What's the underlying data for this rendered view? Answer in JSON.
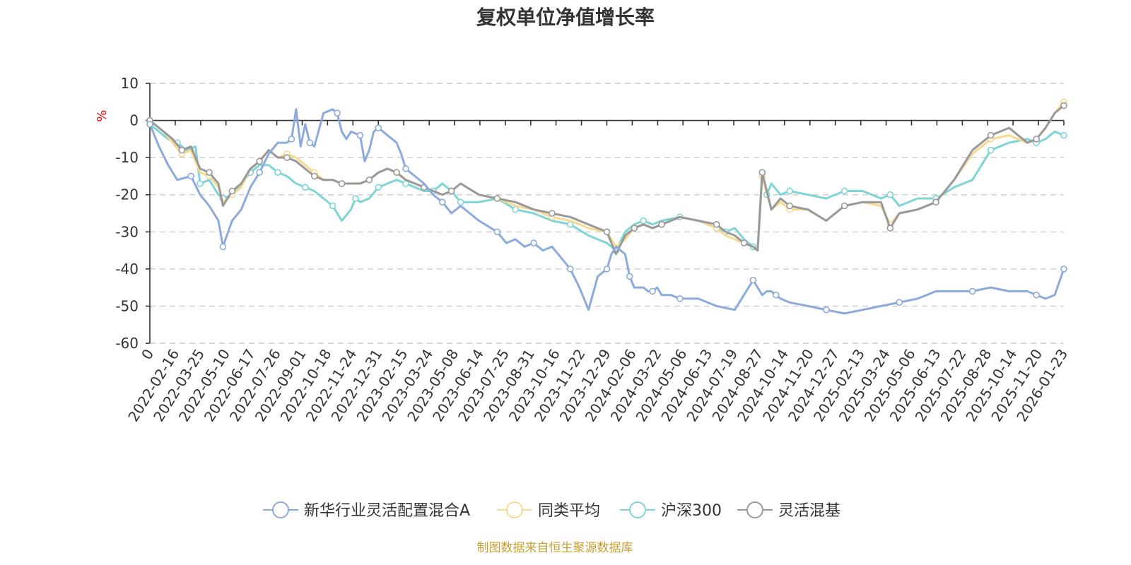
{
  "chart_data": {
    "type": "line",
    "title": "复权单位净值增长率",
    "ylabel": "%",
    "ylim": [
      -60,
      10
    ],
    "yticks": [
      "10",
      "0",
      "-10",
      "-20",
      "-30",
      "-40",
      "-50",
      "-60"
    ],
    "xticks": [
      "0",
      "2022-02-16",
      "2022-03-25",
      "2022-05-10",
      "2022-06-17",
      "2022-07-26",
      "2022-09-01",
      "2022-10-18",
      "2022-11-24",
      "2022-12-31",
      "2023-02-15",
      "2023-03-24",
      "2023-05-08",
      "2023-06-14",
      "2023-07-25",
      "2023-08-31",
      "2023-10-16",
      "2023-11-22",
      "2023-12-29",
      "2024-02-06",
      "2024-03-22",
      "2024-05-06",
      "2024-06-13",
      "2024-07-19",
      "2024-08-27",
      "2024-10-14",
      "2024-11-20",
      "2024-12-27",
      "2025-02-13",
      "2025-03-24",
      "2025-05-06",
      "2025-06-13",
      "2025-07-22",
      "2025-08-28",
      "2025-10-14",
      "2025-11-20",
      "2026-01-23"
    ],
    "x_positions": [
      0.0,
      0.0278,
      0.0556,
      0.0833,
      0.1111,
      0.1389,
      0.1667,
      0.1944,
      0.2222,
      0.25,
      0.2778,
      0.3056,
      0.3333,
      0.3611,
      0.3889,
      0.4167,
      0.4444,
      0.4722,
      0.5,
      0.5278,
      0.5556,
      0.5833,
      0.6111,
      0.6389,
      0.6667,
      0.6944,
      0.7222,
      0.75,
      0.7778,
      0.8056,
      0.8333,
      0.8611,
      0.8889,
      0.9167,
      0.9444,
      0.9722,
      1.0
    ],
    "legend_position": "bottom",
    "grid": true,
    "series": [
      {
        "name": "新华行业灵活配置混合A",
        "color": "#8caadb",
        "x": [
          0,
          0.01,
          0.02,
          0.03,
          0.045,
          0.055,
          0.065,
          0.075,
          0.08,
          0.09,
          0.1,
          0.11,
          0.12,
          0.13,
          0.14,
          0.15,
          0.155,
          0.16,
          0.165,
          0.17,
          0.175,
          0.18,
          0.19,
          0.2,
          0.205,
          0.21,
          0.215,
          0.22,
          0.23,
          0.235,
          0.24,
          0.245,
          0.25,
          0.26,
          0.27,
          0.275,
          0.28,
          0.29,
          0.3,
          0.31,
          0.32,
          0.33,
          0.34,
          0.36,
          0.38,
          0.39,
          0.4,
          0.41,
          0.42,
          0.43,
          0.44,
          0.45,
          0.46,
          0.47,
          0.48,
          0.49,
          0.5,
          0.505,
          0.51,
          0.52,
          0.525,
          0.53,
          0.54,
          0.545,
          0.55,
          0.555,
          0.56,
          0.57,
          0.58,
          0.6,
          0.62,
          0.64,
          0.66,
          0.67,
          0.675,
          0.68,
          0.685,
          0.69,
          0.7,
          0.72,
          0.74,
          0.76,
          0.78,
          0.8,
          0.82,
          0.84,
          0.86,
          0.88,
          0.9,
          0.92,
          0.94,
          0.96,
          0.97,
          0.98,
          0.99,
          1.0
        ],
        "values": [
          -1,
          -7,
          -12,
          -16,
          -15,
          -20,
          -23,
          -27,
          -34,
          -27,
          -24,
          -18,
          -14,
          -9,
          -6,
          -6,
          -5,
          3,
          -7,
          -1,
          -6,
          -7,
          2,
          3,
          2,
          -3,
          -5,
          -3,
          -4,
          -11,
          -8,
          -3,
          -2,
          -4,
          -6,
          -9,
          -13,
          -15,
          -17,
          -20,
          -22,
          -25,
          -23,
          -27,
          -30,
          -33,
          -32,
          -34,
          -33,
          -35,
          -34,
          -37,
          -40,
          -45,
          -51,
          -42,
          -40,
          -36,
          -34,
          -36,
          -42,
          -45,
          -45,
          -46,
          -46,
          -45,
          -47,
          -47,
          -48,
          -48,
          -50,
          -51,
          -43,
          -47,
          -46,
          -46,
          -47,
          -48,
          -49,
          -50,
          -51,
          -52,
          -51,
          -50,
          -49,
          -48,
          -46,
          -46,
          -46,
          -45,
          -46,
          -46,
          -47,
          -48,
          -47,
          -40
        ]
      },
      {
        "name": "同类平均",
        "color": "#f9d88f",
        "x": [
          0,
          0.015,
          0.025,
          0.035,
          0.045,
          0.055,
          0.065,
          0.075,
          0.08,
          0.09,
          0.1,
          0.11,
          0.12,
          0.13,
          0.14,
          0.15,
          0.16,
          0.17,
          0.18,
          0.19,
          0.2,
          0.21,
          0.22,
          0.23,
          0.24,
          0.25,
          0.26,
          0.27,
          0.28,
          0.29,
          0.3,
          0.31,
          0.32,
          0.33,
          0.34,
          0.36,
          0.38,
          0.4,
          0.42,
          0.44,
          0.46,
          0.48,
          0.5,
          0.51,
          0.52,
          0.53,
          0.54,
          0.55,
          0.56,
          0.58,
          0.6,
          0.62,
          0.63,
          0.64,
          0.65,
          0.66,
          0.665,
          0.67,
          0.68,
          0.69,
          0.7,
          0.72,
          0.74,
          0.76,
          0.78,
          0.8,
          0.81,
          0.82,
          0.84,
          0.86,
          0.88,
          0.9,
          0.92,
          0.94,
          0.96,
          0.97,
          0.98,
          0.99,
          1.0
        ],
        "values": [
          0,
          -3,
          -6,
          -9,
          -8,
          -14,
          -15,
          -18,
          -22,
          -20,
          -18,
          -13,
          -11,
          -8,
          -10,
          -9,
          -10,
          -12,
          -14,
          -16,
          -16,
          -17,
          -17,
          -17,
          -16,
          -14,
          -13,
          -14,
          -16,
          -17,
          -18,
          -19,
          -20,
          -19,
          -17,
          -20,
          -21,
          -23,
          -24,
          -26,
          -27,
          -29,
          -30,
          -34,
          -32,
          -29,
          -28,
          -29,
          -28,
          -26,
          -27,
          -29,
          -31,
          -32,
          -33,
          -34,
          -35,
          -15,
          -24,
          -22,
          -24,
          -24,
          -27,
          -23,
          -22,
          -23,
          -28,
          -25,
          -24,
          -22,
          -16,
          -9,
          -5,
          -4,
          -6,
          -5,
          -2,
          2,
          5
        ]
      },
      {
        "name": "沪深300",
        "color": "#7fd4d6",
        "x": [
          0,
          0.01,
          0.02,
          0.03,
          0.04,
          0.05,
          0.055,
          0.065,
          0.075,
          0.08,
          0.09,
          0.1,
          0.11,
          0.12,
          0.13,
          0.14,
          0.15,
          0.16,
          0.17,
          0.18,
          0.19,
          0.2,
          0.21,
          0.22,
          0.225,
          0.23,
          0.24,
          0.25,
          0.26,
          0.27,
          0.28,
          0.29,
          0.3,
          0.31,
          0.32,
          0.33,
          0.34,
          0.36,
          0.38,
          0.4,
          0.42,
          0.44,
          0.46,
          0.48,
          0.5,
          0.51,
          0.52,
          0.53,
          0.54,
          0.55,
          0.56,
          0.58,
          0.6,
          0.62,
          0.63,
          0.64,
          0.65,
          0.66,
          0.665,
          0.67,
          0.675,
          0.68,
          0.69,
          0.7,
          0.72,
          0.74,
          0.76,
          0.78,
          0.8,
          0.81,
          0.82,
          0.84,
          0.86,
          0.88,
          0.9,
          0.92,
          0.94,
          0.96,
          0.97,
          0.98,
          0.99,
          1.0
        ],
        "values": [
          -1,
          -3,
          -5,
          -6,
          -8,
          -7,
          -17,
          -16,
          -20,
          -21,
          -20,
          -17,
          -14,
          -12,
          -12,
          -14,
          -15,
          -17,
          -18,
          -19,
          -21,
          -23,
          -27,
          -24,
          -21,
          -22,
          -21,
          -18,
          -17,
          -16,
          -17,
          -18,
          -19,
          -19,
          -17,
          -19,
          -22,
          -22,
          -21,
          -24,
          -25,
          -27,
          -28,
          -31,
          -33,
          -35,
          -30,
          -28,
          -27,
          -28,
          -27,
          -26,
          -27,
          -29,
          -30,
          -29,
          -32,
          -34,
          -35,
          -14,
          -20,
          -17,
          -20,
          -19,
          -20,
          -21,
          -19,
          -19,
          -21,
          -20,
          -23,
          -21,
          -21,
          -18,
          -16,
          -8,
          -6,
          -5,
          -6,
          -5,
          -3,
          -4
        ]
      },
      {
        "name": "灵活混基",
        "color": "#999999",
        "x": [
          0,
          0.015,
          0.025,
          0.035,
          0.045,
          0.055,
          0.065,
          0.075,
          0.08,
          0.09,
          0.1,
          0.11,
          0.12,
          0.13,
          0.14,
          0.15,
          0.16,
          0.17,
          0.18,
          0.19,
          0.2,
          0.21,
          0.22,
          0.23,
          0.24,
          0.25,
          0.26,
          0.27,
          0.28,
          0.29,
          0.3,
          0.31,
          0.32,
          0.33,
          0.34,
          0.36,
          0.38,
          0.4,
          0.42,
          0.44,
          0.46,
          0.48,
          0.5,
          0.51,
          0.52,
          0.53,
          0.54,
          0.55,
          0.56,
          0.58,
          0.6,
          0.62,
          0.63,
          0.64,
          0.65,
          0.66,
          0.665,
          0.67,
          0.68,
          0.69,
          0.7,
          0.72,
          0.74,
          0.76,
          0.78,
          0.8,
          0.81,
          0.82,
          0.84,
          0.86,
          0.88,
          0.9,
          0.92,
          0.94,
          0.96,
          0.97,
          0.98,
          0.99,
          1.0
        ],
        "values": [
          0,
          -3,
          -5,
          -8,
          -7,
          -13,
          -14,
          -17,
          -23,
          -19,
          -17,
          -13,
          -11,
          -8,
          -10,
          -10,
          -11,
          -13,
          -15,
          -16,
          -16,
          -17,
          -17,
          -17,
          -16,
          -14,
          -13,
          -14,
          -16,
          -17,
          -18,
          -19,
          -20,
          -19,
          -17,
          -20,
          -21,
          -22,
          -24,
          -25,
          -26,
          -28,
          -30,
          -36,
          -31,
          -29,
          -28,
          -29,
          -28,
          -26,
          -27,
          -28,
          -30,
          -31,
          -33,
          -34,
          -35,
          -14,
          -24,
          -21,
          -23,
          -24,
          -27,
          -23,
          -22,
          -22,
          -29,
          -25,
          -24,
          -22,
          -16,
          -8,
          -4,
          -2,
          -6,
          -5,
          -2,
          2,
          4
        ]
      }
    ],
    "source_note": "制图数据来自恒生聚源数据库"
  }
}
